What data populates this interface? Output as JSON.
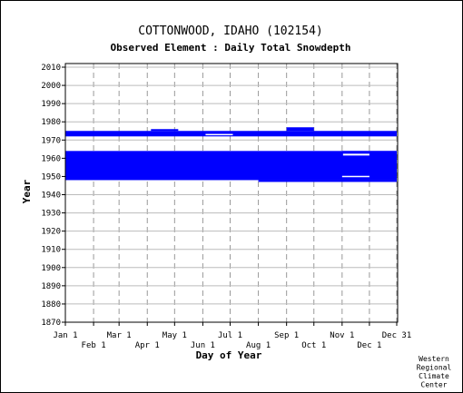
{
  "chart_data": {
    "type": "bar",
    "title": "COTTONWOOD, IDAHO   (102154)",
    "subtitle": "Observed Element : Daily Total Snowdepth",
    "xlabel": "Day of Year",
    "ylabel": "Year",
    "xlim": [
      1,
      366
    ],
    "ylim": [
      1870,
      2012
    ],
    "yticks": [
      1870,
      1880,
      1890,
      1900,
      1910,
      1920,
      1930,
      1940,
      1950,
      1960,
      1970,
      1980,
      1990,
      2000,
      2010
    ],
    "xticks_upper": [
      {
        "label": "Jan 1",
        "day": 1
      },
      {
        "label": "Mar 1",
        "day": 60
      },
      {
        "label": "May 1",
        "day": 121
      },
      {
        "label": "Jul 1",
        "day": 182
      },
      {
        "label": "Sep 1",
        "day": 244
      },
      {
        "label": "Nov 1",
        "day": 305
      },
      {
        "label": "Dec 31",
        "day": 365
      }
    ],
    "xticks_lower": [
      {
        "label": "Feb 1",
        "day": 32
      },
      {
        "label": "Apr 1",
        "day": 91
      },
      {
        "label": "Jun 1",
        "day": 152
      },
      {
        "label": "Aug 1",
        "day": 213
      },
      {
        "label": "Oct 1",
        "day": 274
      },
      {
        "label": "Dec 1",
        "day": 335
      }
    ],
    "grid": true,
    "series": [
      {
        "color": "#0000ff",
        "data_coverage": [
          {
            "day_start": 1,
            "day_end": 365,
            "year_start": 1948,
            "year_end": 1964
          },
          {
            "day_start": 213,
            "day_end": 365,
            "year_start": 1947,
            "year_end": 1948
          },
          {
            "day_start": 1,
            "day_end": 365,
            "year_start": 1972,
            "year_end": 1975
          },
          {
            "day_start": 95,
            "day_end": 125,
            "year_start": 1975,
            "year_end": 1976
          },
          {
            "day_start": 244,
            "day_end": 274,
            "year_start": 1975,
            "year_end": 1977
          },
          {
            "day_start": 305,
            "day_end": 365,
            "year_start": 1962,
            "year_end": 1964
          }
        ],
        "missing_gaps": [
          {
            "day_start": 155,
            "day_end": 185,
            "year": 1973
          },
          {
            "day_start": 305,
            "day_end": 335,
            "year": 1950
          },
          {
            "day_start": 306,
            "day_end": 335,
            "year_start": 1961.5,
            "year_end": 1962.5
          }
        ]
      }
    ]
  },
  "credit": {
    "lines": [
      "Western",
      "Regional",
      "Climate",
      "Center"
    ]
  }
}
